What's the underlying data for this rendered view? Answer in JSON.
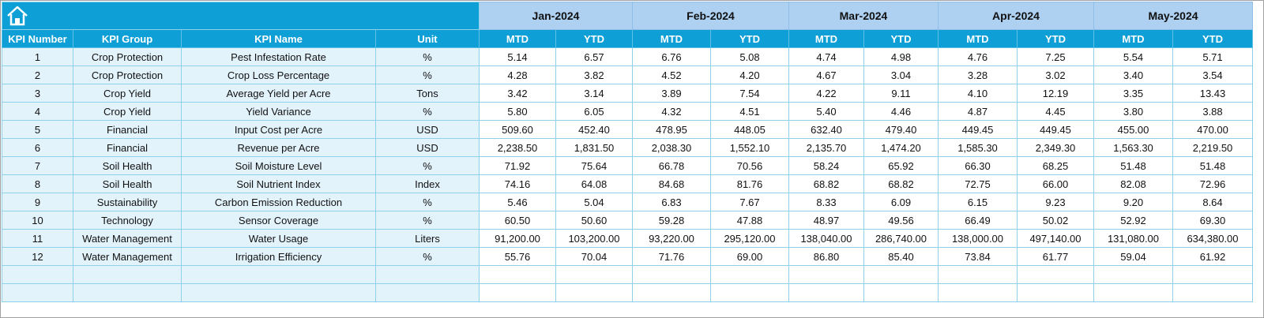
{
  "columns": [
    "KPI Number",
    "KPI Group",
    "KPI Name",
    "Unit"
  ],
  "months": [
    "Jan-2024",
    "Feb-2024",
    "Mar-2024",
    "Apr-2024",
    "May-2024"
  ],
  "subheaders": [
    "MTD",
    "YTD"
  ],
  "rows": [
    [
      1,
      "Crop Protection",
      "Pest Infestation Rate",
      "%",
      "5.14",
      "6.57",
      "6.76",
      "5.08",
      "4.74",
      "4.98",
      "4.76",
      "7.25",
      "5.54",
      "5.71"
    ],
    [
      2,
      "Crop Protection",
      "Crop Loss Percentage",
      "%",
      "4.28",
      "3.82",
      "4.52",
      "4.20",
      "4.67",
      "3.04",
      "3.28",
      "3.02",
      "3.40",
      "3.54"
    ],
    [
      3,
      "Crop Yield",
      "Average Yield per Acre",
      "Tons",
      "3.42",
      "3.14",
      "3.89",
      "7.54",
      "4.22",
      "9.11",
      "4.10",
      "12.19",
      "3.35",
      "13.43"
    ],
    [
      4,
      "Crop Yield",
      "Yield Variance",
      "%",
      "5.80",
      "6.05",
      "4.32",
      "4.51",
      "5.40",
      "4.46",
      "4.87",
      "4.45",
      "3.80",
      "3.88"
    ],
    [
      5,
      "Financial",
      "Input Cost per Acre",
      "USD",
      "509.60",
      "452.40",
      "478.95",
      "448.05",
      "632.40",
      "479.40",
      "449.45",
      "449.45",
      "455.00",
      "470.00"
    ],
    [
      6,
      "Financial",
      "Revenue per Acre",
      "USD",
      "2,238.50",
      "1,831.50",
      "2,038.30",
      "1,552.10",
      "2,135.70",
      "1,474.20",
      "1,585.30",
      "2,349.30",
      "1,563.30",
      "2,219.50"
    ],
    [
      7,
      "Soil Health",
      "Soil Moisture Level",
      "%",
      "71.92",
      "75.64",
      "66.78",
      "70.56",
      "58.24",
      "65.92",
      "66.30",
      "68.25",
      "51.48",
      "51.48"
    ],
    [
      8,
      "Soil Health",
      "Soil Nutrient Index",
      "Index",
      "74.16",
      "64.08",
      "84.68",
      "81.76",
      "68.82",
      "68.82",
      "72.75",
      "66.00",
      "82.08",
      "72.96"
    ],
    [
      9,
      "Sustainability",
      "Carbon Emission Reduction",
      "%",
      "5.46",
      "5.04",
      "6.83",
      "7.67",
      "8.33",
      "6.09",
      "6.15",
      "9.23",
      "9.20",
      "8.64"
    ],
    [
      10,
      "Technology",
      "Sensor Coverage",
      "%",
      "60.50",
      "50.60",
      "59.28",
      "47.88",
      "48.97",
      "49.56",
      "66.49",
      "50.02",
      "52.92",
      "69.30"
    ],
    [
      11,
      "Water Management",
      "Water Usage",
      "Liters",
      "91,200.00",
      "103,200.00",
      "93,220.00",
      "295,120.00",
      "138,040.00",
      "286,740.00",
      "138,000.00",
      "497,140.00",
      "131,080.00",
      "634,380.00"
    ],
    [
      12,
      "Water Management",
      "Irrigation Efficiency",
      "%",
      "55.76",
      "70.04",
      "71.76",
      "69.00",
      "86.80",
      "85.40",
      "73.84",
      "61.77",
      "59.04",
      "61.92"
    ]
  ]
}
